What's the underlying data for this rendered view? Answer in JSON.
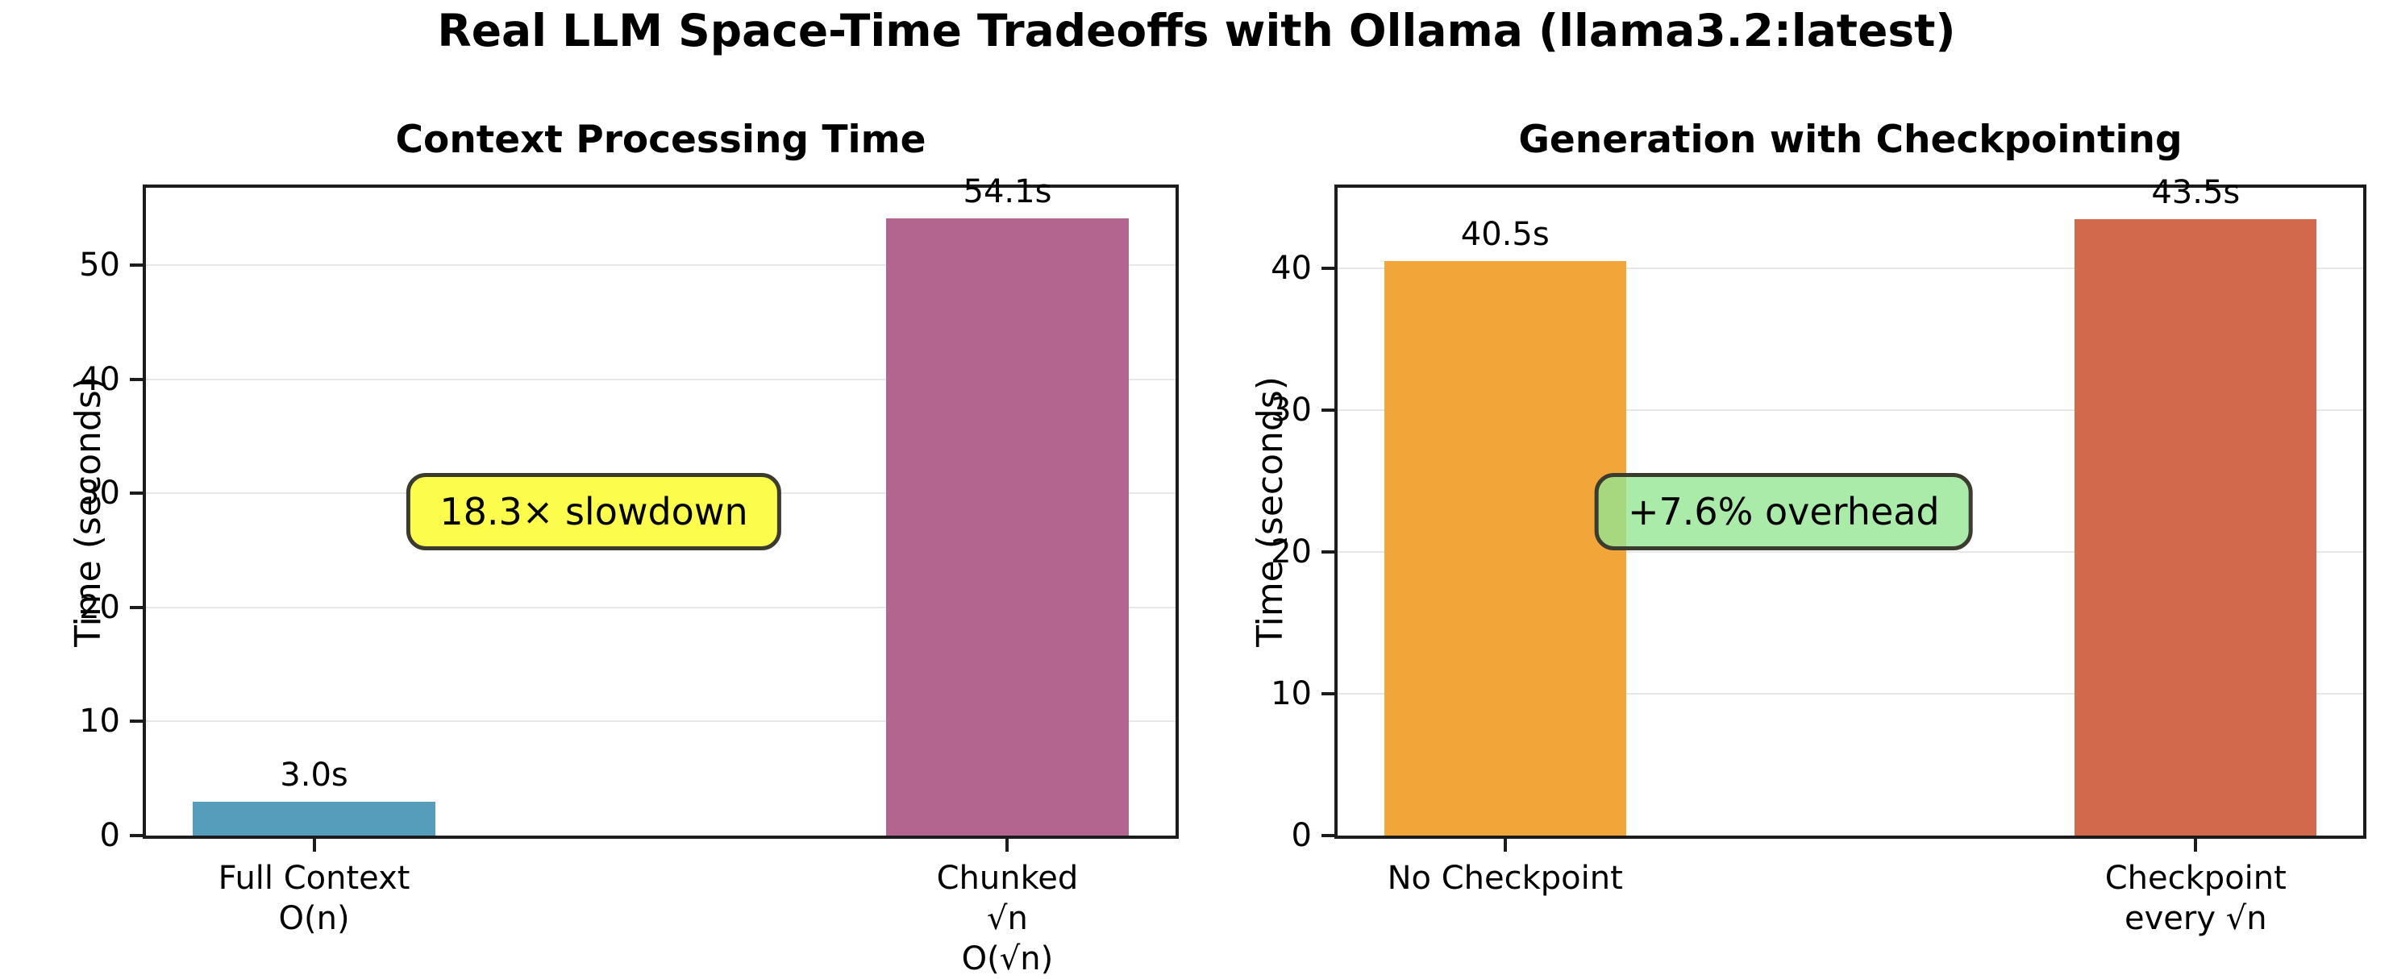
{
  "figure": {
    "title": "Real LLM Space-Time Tradeoffs with Ollama (llama3.2:latest)"
  },
  "chart_data": [
    {
      "type": "bar",
      "title": "Context Processing Time",
      "ylabel": "Time (seconds)",
      "categories": [
        "Full Context\nO(n)",
        "Chunked √n\nO(√n)"
      ],
      "values": [
        3.0,
        54.1
      ],
      "bar_labels": [
        "3.0s",
        "54.1s"
      ],
      "bar_colors": [
        "#569dbb",
        "#b4658f"
      ],
      "yticks": [
        0,
        10,
        20,
        30,
        40,
        50
      ],
      "ylim": [
        0,
        56.8
      ],
      "grid": true,
      "legend": "none",
      "annotation": {
        "text": "18.3× slowdown",
        "bg_color": "#fcfc4d",
        "border_color": "#3b3b2f"
      }
    },
    {
      "type": "bar",
      "title": "Generation with Checkpointing",
      "ylabel": "Time (seconds)",
      "categories": [
        "No Checkpoint",
        "Checkpoint\nevery √n"
      ],
      "values": [
        40.5,
        43.5
      ],
      "bar_labels": [
        "40.5s",
        "43.5s"
      ],
      "bar_colors": [
        "#f2a63a",
        "#d2694c"
      ],
      "yticks": [
        0,
        10,
        20,
        30,
        40
      ],
      "ylim": [
        0,
        45.7
      ],
      "grid": true,
      "legend": "none",
      "annotation": {
        "text": "+7.6% overhead",
        "bg_color": "rgba(146,230,146,0.78)",
        "border_color": "#3b3b2f"
      }
    }
  ]
}
